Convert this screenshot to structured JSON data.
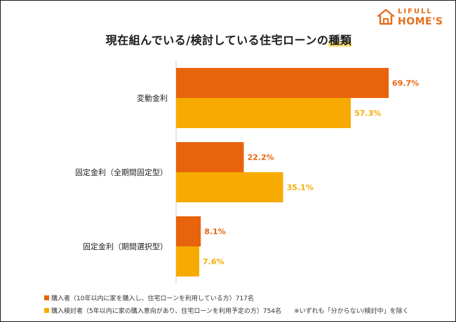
{
  "logo": {
    "line1": "LIFULL",
    "line2": "HOME'S"
  },
  "title_main": "現在組んでいる/検討している住宅ローンの",
  "title_highlight": "種類",
  "colors": {
    "series1": "#e8640c",
    "series2": "#f7ab00",
    "axis": "#c8c8c8"
  },
  "chart_data": {
    "type": "bar",
    "orientation": "horizontal",
    "categories": [
      "変動金利",
      "固定金利（全期間固定型）",
      "固定金利（期間選択型）"
    ],
    "series": [
      {
        "name": "購入者（10年以内に家を購入し、住宅ローンを利用している方）717名",
        "values": [
          69.7,
          22.2,
          8.1
        ]
      },
      {
        "name": "購入検討者（5年以内に家の購入意向があり、住宅ローンを利用予定の方）754名",
        "values": [
          57.3,
          35.1,
          7.6
        ]
      }
    ],
    "value_unit": "%",
    "xlim": [
      0,
      100
    ],
    "grid": false,
    "legend_position": "bottom-left",
    "note": "※いずれも「分からない/検討中」を除く"
  }
}
